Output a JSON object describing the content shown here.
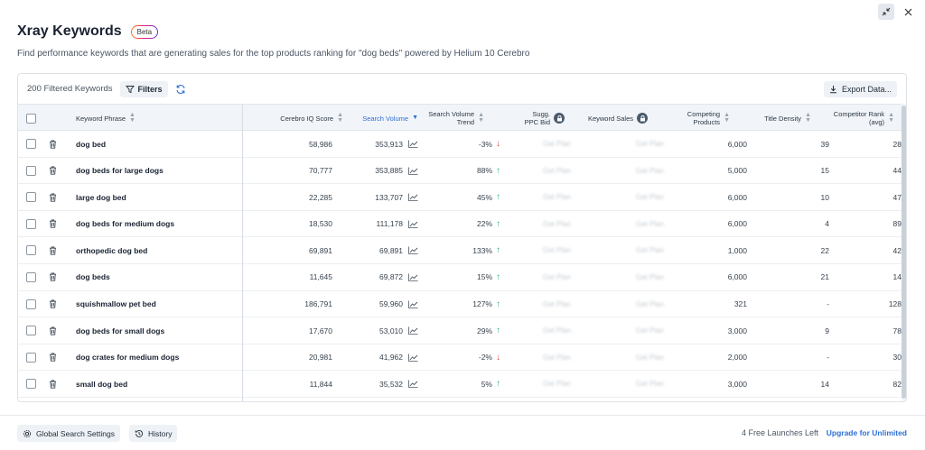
{
  "header": {
    "title": "Xray Keywords",
    "beta": "Beta",
    "subtitle": "Find performance keywords that are generating sales for the top products ranking for \"dog beds\" powered by Helium 10 Cerebro"
  },
  "toolbar": {
    "filtered_count": "200 Filtered Keywords",
    "filters_label": "Filters",
    "export_label": "Export Data..."
  },
  "columns": {
    "keyword_phrase": "Keyword Phrase",
    "cerebro_iq": "Cerebro IQ Score",
    "search_volume": "Search Volume",
    "sv_trend_1": "Search Volume",
    "sv_trend_2": "Trend",
    "ppc_1": "Sugg.",
    "ppc_2": "PPC Bid",
    "keyword_sales": "Keyword Sales",
    "competing_1": "Competing",
    "competing_2": "Products",
    "title_density": "Title Density",
    "comp_rank_1": "Competitor Rank",
    "comp_rank_2": "(avg)"
  },
  "rows": [
    {
      "keyword": "dog bed",
      "iq": "58,986",
      "volume": "353,913",
      "trend": "-3%",
      "dir": "down",
      "ppc": "Get Plan",
      "sales": "Get Plan",
      "competing": "6,000",
      "density": "39",
      "rank": "28"
    },
    {
      "keyword": "dog beds for large dogs",
      "iq": "70,777",
      "volume": "353,885",
      "trend": "88%",
      "dir": "up",
      "ppc": "Get Plan",
      "sales": "Get Plan",
      "competing": "5,000",
      "density": "15",
      "rank": "44"
    },
    {
      "keyword": "large dog bed",
      "iq": "22,285",
      "volume": "133,707",
      "trend": "45%",
      "dir": "up",
      "ppc": "Get Plan",
      "sales": "Get Plan",
      "competing": "6,000",
      "density": "10",
      "rank": "47"
    },
    {
      "keyword": "dog beds for medium dogs",
      "iq": "18,530",
      "volume": "111,178",
      "trend": "22%",
      "dir": "up",
      "ppc": "Get Plan",
      "sales": "Get Plan",
      "competing": "6,000",
      "density": "4",
      "rank": "89"
    },
    {
      "keyword": "orthopedic dog bed",
      "iq": "69,891",
      "volume": "69,891",
      "trend": "133%",
      "dir": "up",
      "ppc": "Get Plan",
      "sales": "Get Plan",
      "competing": "1,000",
      "density": "22",
      "rank": "42"
    },
    {
      "keyword": "dog beds",
      "iq": "11,645",
      "volume": "69,872",
      "trend": "15%",
      "dir": "up",
      "ppc": "Get Plan",
      "sales": "Get Plan",
      "competing": "6,000",
      "density": "21",
      "rank": "14"
    },
    {
      "keyword": "squishmallow pet bed",
      "iq": "186,791",
      "volume": "59,960",
      "trend": "127%",
      "dir": "up",
      "ppc": "Get Plan",
      "sales": "Get Plan",
      "competing": "321",
      "density": "-",
      "rank": "128"
    },
    {
      "keyword": "dog beds for small dogs",
      "iq": "17,670",
      "volume": "53,010",
      "trend": "29%",
      "dir": "up",
      "ppc": "Get Plan",
      "sales": "Get Plan",
      "competing": "3,000",
      "density": "9",
      "rank": "78"
    },
    {
      "keyword": "dog crates for medium dogs",
      "iq": "20,981",
      "volume": "41,962",
      "trend": "-2%",
      "dir": "down",
      "ppc": "Get Plan",
      "sales": "Get Plan",
      "competing": "2,000",
      "density": "-",
      "rank": "30"
    },
    {
      "keyword": "small dog bed",
      "iq": "11,844",
      "volume": "35,532",
      "trend": "5%",
      "dir": "up",
      "ppc": "Get Plan",
      "sales": "Get Plan",
      "competing": "3,000",
      "density": "14",
      "rank": "82"
    }
  ],
  "footer": {
    "global_settings": "Global Search Settings",
    "history": "History",
    "launches": "4 Free Launches Left",
    "upgrade": "Upgrade for Unlimited"
  },
  "colors": {
    "accent": "#2f6fd6",
    "up": "#2fb57a",
    "down": "#e04848"
  }
}
